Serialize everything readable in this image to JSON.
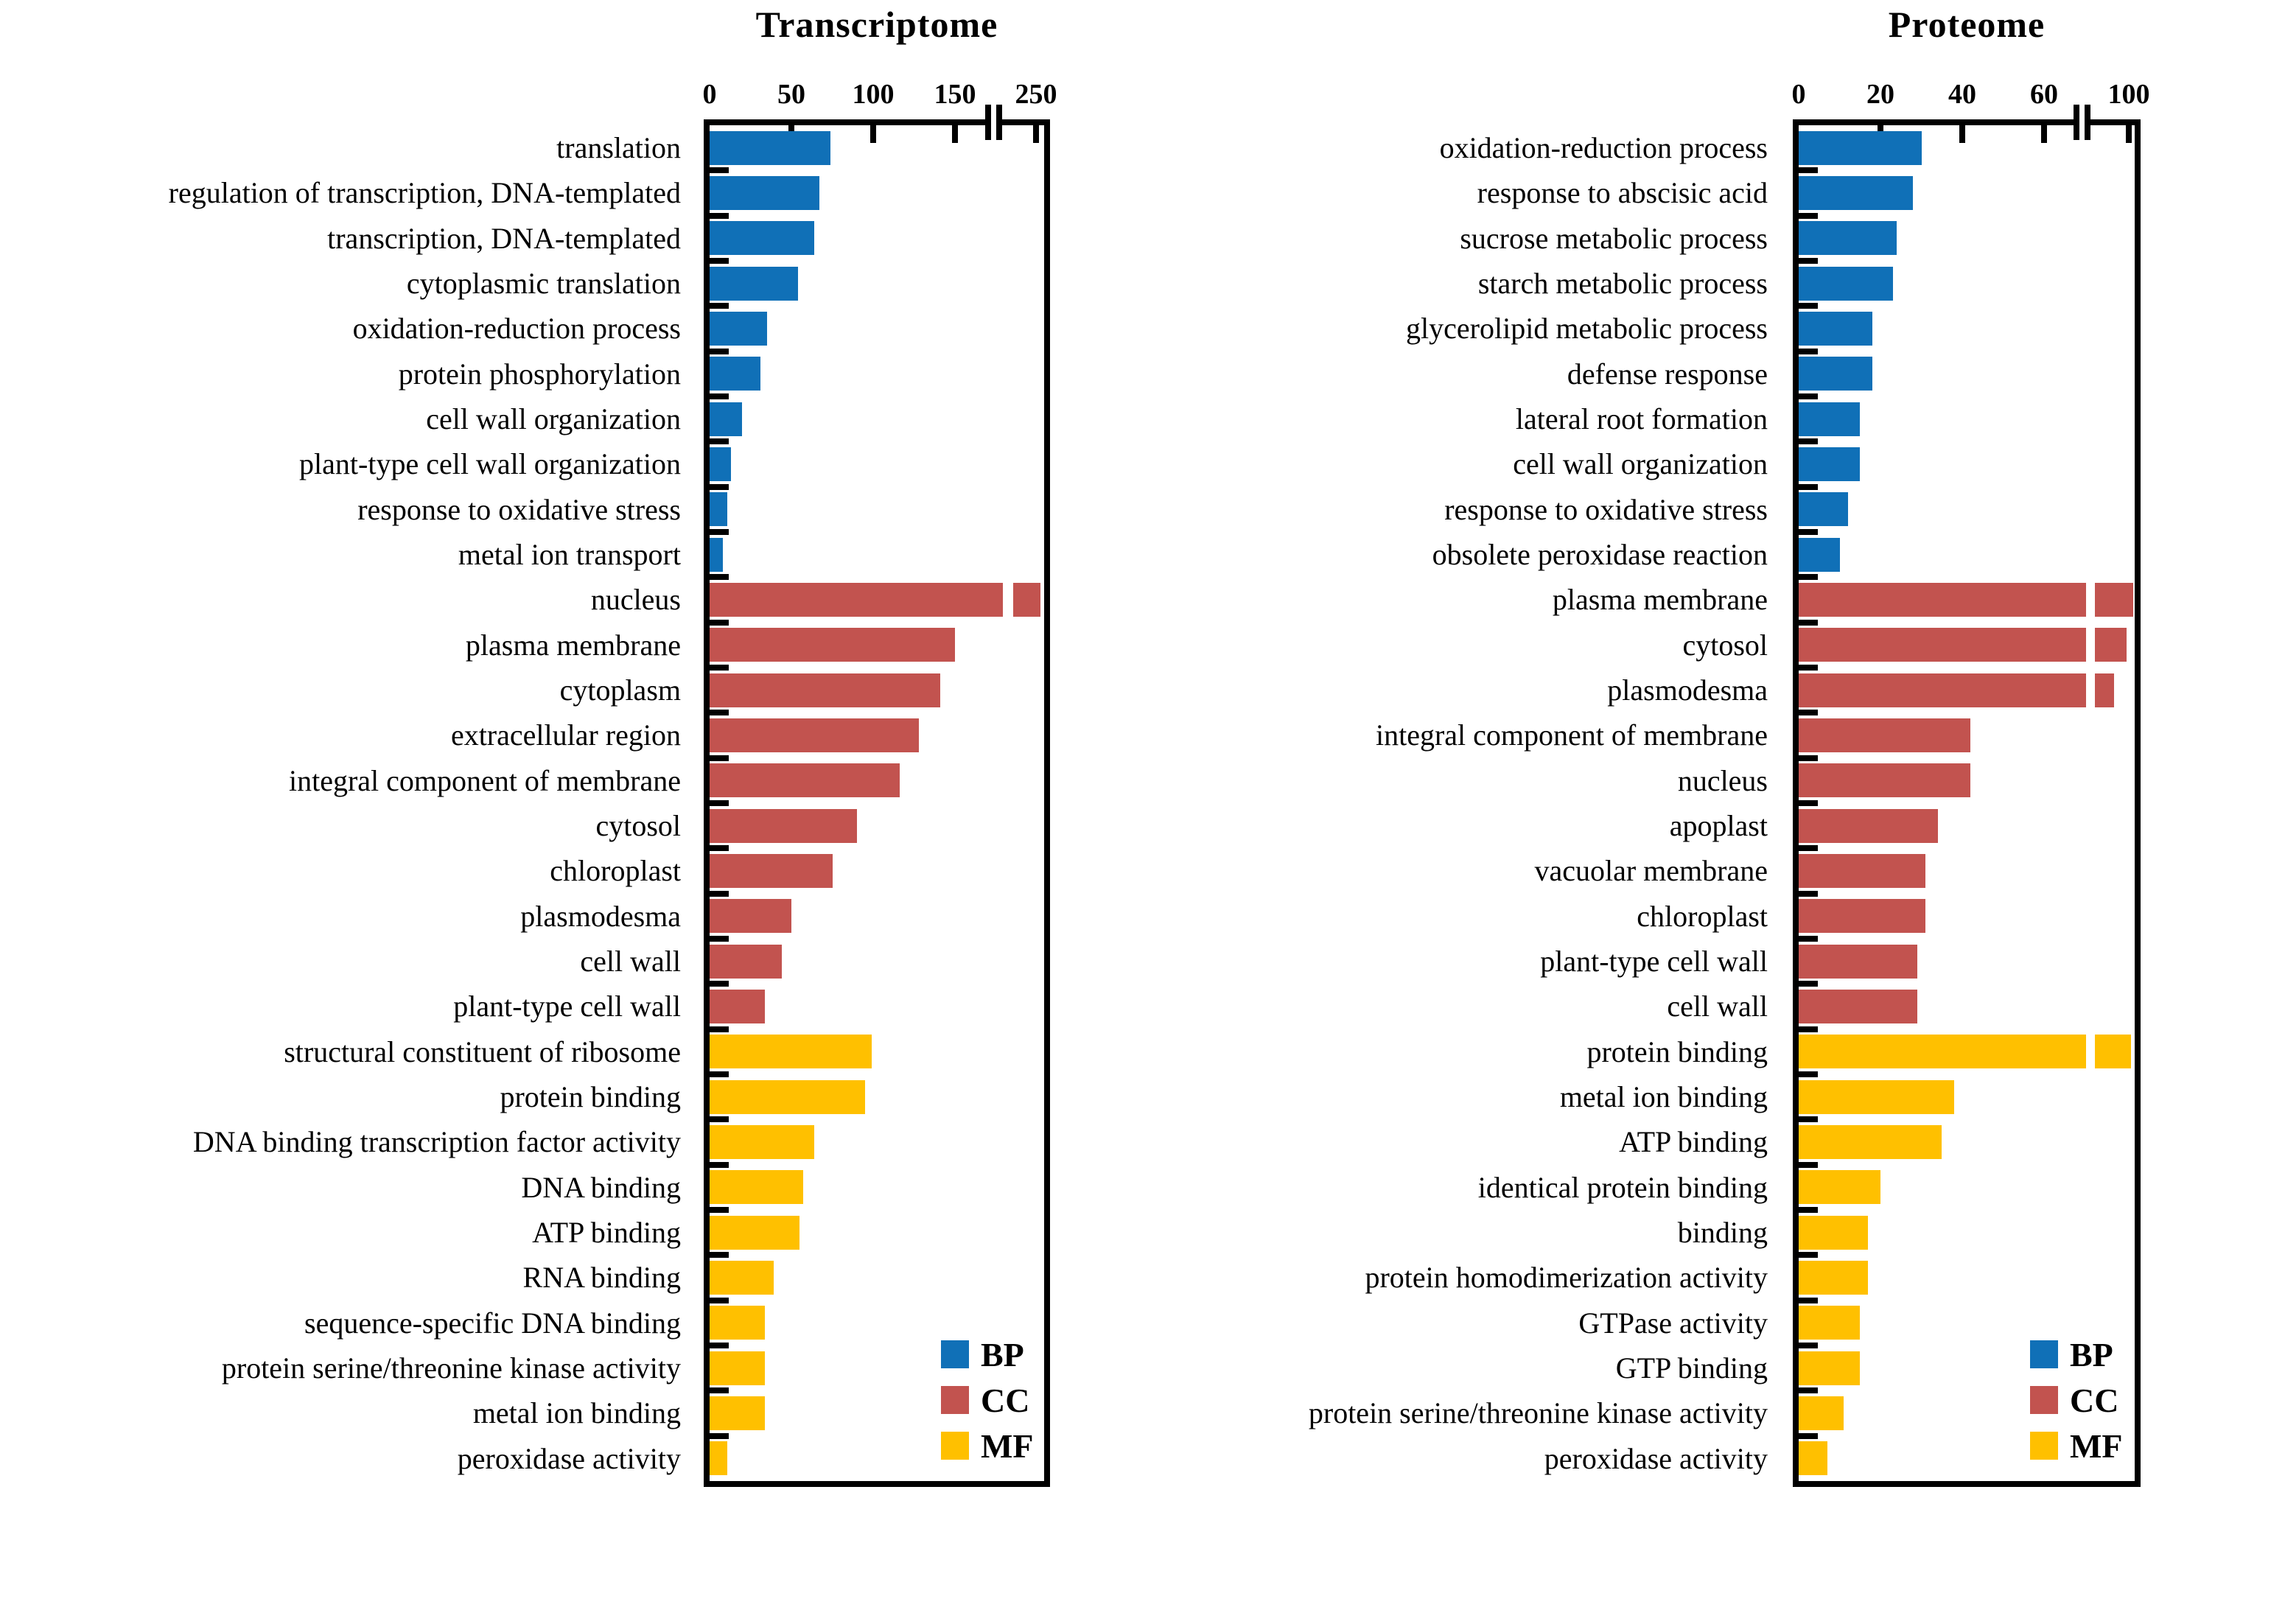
{
  "colors": {
    "BP": "#1070b7",
    "CC": "#c2534f",
    "MF": "#ffc000",
    "axis": "#000000",
    "text": "#000000"
  },
  "chart_data": [
    {
      "type": "bar",
      "orientation": "horizontal",
      "title": "Transcriptome",
      "xlabel": "",
      "ylabel": "",
      "grid": false,
      "x_tick_labels": [
        "0",
        "50",
        "100",
        "150",
        "250"
      ],
      "x_tick_values": [
        0,
        50,
        100,
        150,
        250
      ],
      "x_axis_break_between": [
        150,
        250
      ],
      "legend_position": "inside-bottom-right",
      "legend": [
        {
          "key": "BP",
          "label": "BP"
        },
        {
          "key": "CC",
          "label": "CC"
        },
        {
          "key": "MF",
          "label": "MF"
        }
      ],
      "bars": [
        {
          "category": "translation",
          "group": "BP",
          "value": 74
        },
        {
          "category": "regulation of transcription, DNA-templated",
          "group": "BP",
          "value": 67
        },
        {
          "category": "transcription, DNA-templated",
          "group": "BP",
          "value": 64
        },
        {
          "category": "cytoplasmic translation",
          "group": "BP",
          "value": 54
        },
        {
          "category": "oxidation-reduction process",
          "group": "BP",
          "value": 35
        },
        {
          "category": "protein phosphorylation",
          "group": "BP",
          "value": 31
        },
        {
          "category": "cell wall organization",
          "group": "BP",
          "value": 20
        },
        {
          "category": "plant-type cell wall organization",
          "group": "BP",
          "value": 13
        },
        {
          "category": "response to oxidative stress",
          "group": "BP",
          "value": 11
        },
        {
          "category": "metal ion transport",
          "group": "BP",
          "value": 8
        },
        {
          "category": "nucleus",
          "group": "CC",
          "value": 255,
          "exceeds_axis_break": true
        },
        {
          "category": "plasma membrane",
          "group": "CC",
          "value": 150
        },
        {
          "category": "cytoplasm",
          "group": "CC",
          "value": 141
        },
        {
          "category": "extracellular region",
          "group": "CC",
          "value": 128
        },
        {
          "category": "integral component of membrane",
          "group": "CC",
          "value": 116
        },
        {
          "category": "cytosol",
          "group": "CC",
          "value": 90
        },
        {
          "category": "chloroplast",
          "group": "CC",
          "value": 75
        },
        {
          "category": "plasmodesma",
          "group": "CC",
          "value": 50
        },
        {
          "category": "cell wall",
          "group": "CC",
          "value": 44
        },
        {
          "category": "plant-type cell wall",
          "group": "CC",
          "value": 34
        },
        {
          "category": "structural constituent of ribosome",
          "group": "MF",
          "value": 99
        },
        {
          "category": "protein binding",
          "group": "MF",
          "value": 95
        },
        {
          "category": "DNA binding transcription factor activity",
          "group": "MF",
          "value": 64
        },
        {
          "category": "DNA binding",
          "group": "MF",
          "value": 57
        },
        {
          "category": "ATP binding",
          "group": "MF",
          "value": 55
        },
        {
          "category": "RNA binding",
          "group": "MF",
          "value": 39
        },
        {
          "category": "sequence-specific DNA binding",
          "group": "MF",
          "value": 34
        },
        {
          "category": "protein serine/threonine kinase activity",
          "group": "MF",
          "value": 34
        },
        {
          "category": "metal ion binding",
          "group": "MF",
          "value": 34
        },
        {
          "category": "peroxidase activity",
          "group": "MF",
          "value": 11
        }
      ]
    },
    {
      "type": "bar",
      "orientation": "horizontal",
      "title": "Proteome",
      "xlabel": "",
      "ylabel": "",
      "grid": false,
      "x_tick_labels": [
        "0",
        "20",
        "40",
        "60",
        "100"
      ],
      "x_tick_values": [
        0,
        20,
        40,
        60,
        100
      ],
      "x_axis_break_between": [
        60,
        100
      ],
      "legend_position": "inside-bottom-right",
      "legend": [
        {
          "key": "BP",
          "label": "BP"
        },
        {
          "key": "CC",
          "label": "CC"
        },
        {
          "key": "MF",
          "label": "MF"
        }
      ],
      "bars": [
        {
          "category": "oxidation-reduction process",
          "group": "BP",
          "value": 30
        },
        {
          "category": "response to abscisic acid",
          "group": "BP",
          "value": 28
        },
        {
          "category": "sucrose metabolic process",
          "group": "BP",
          "value": 24
        },
        {
          "category": "starch metabolic process",
          "group": "BP",
          "value": 23
        },
        {
          "category": "glycerolipid metabolic process",
          "group": "BP",
          "value": 18
        },
        {
          "category": "defense response",
          "group": "BP",
          "value": 18
        },
        {
          "category": "lateral root formation",
          "group": "BP",
          "value": 15
        },
        {
          "category": "cell wall organization",
          "group": "BP",
          "value": 15
        },
        {
          "category": "response to oxidative stress",
          "group": "BP",
          "value": 12
        },
        {
          "category": "obsolete peroxidase reaction",
          "group": "BP",
          "value": 10
        },
        {
          "category": "plasma membrane",
          "group": "CC",
          "value": 102,
          "exceeds_axis_break": true
        },
        {
          "category": "cytosol",
          "group": "CC",
          "value": 99,
          "exceeds_axis_break": true
        },
        {
          "category": "plasmodesma",
          "group": "CC",
          "value": 93,
          "exceeds_axis_break": true
        },
        {
          "category": "integral component of membrane",
          "group": "CC",
          "value": 42
        },
        {
          "category": "nucleus",
          "group": "CC",
          "value": 42
        },
        {
          "category": "apoplast",
          "group": "CC",
          "value": 34
        },
        {
          "category": "vacuolar membrane",
          "group": "CC",
          "value": 31
        },
        {
          "category": "chloroplast",
          "group": "CC",
          "value": 31
        },
        {
          "category": "plant-type cell wall",
          "group": "CC",
          "value": 29
        },
        {
          "category": "cell wall",
          "group": "CC",
          "value": 29
        },
        {
          "category": "protein binding",
          "group": "MF",
          "value": 101,
          "exceeds_axis_break": true
        },
        {
          "category": "metal ion binding",
          "group": "MF",
          "value": 38
        },
        {
          "category": "ATP binding",
          "group": "MF",
          "value": 35
        },
        {
          "category": "identical protein binding",
          "group": "MF",
          "value": 20
        },
        {
          "category": "binding",
          "group": "MF",
          "value": 17
        },
        {
          "category": "protein homodimerization activity",
          "group": "MF",
          "value": 17
        },
        {
          "category": "GTPase activity",
          "group": "MF",
          "value": 15
        },
        {
          "category": "GTP binding",
          "group": "MF",
          "value": 15
        },
        {
          "category": "protein serine/threonine kinase activity",
          "group": "MF",
          "value": 11
        },
        {
          "category": "peroxidase activity",
          "group": "MF",
          "value": 7
        }
      ]
    }
  ]
}
